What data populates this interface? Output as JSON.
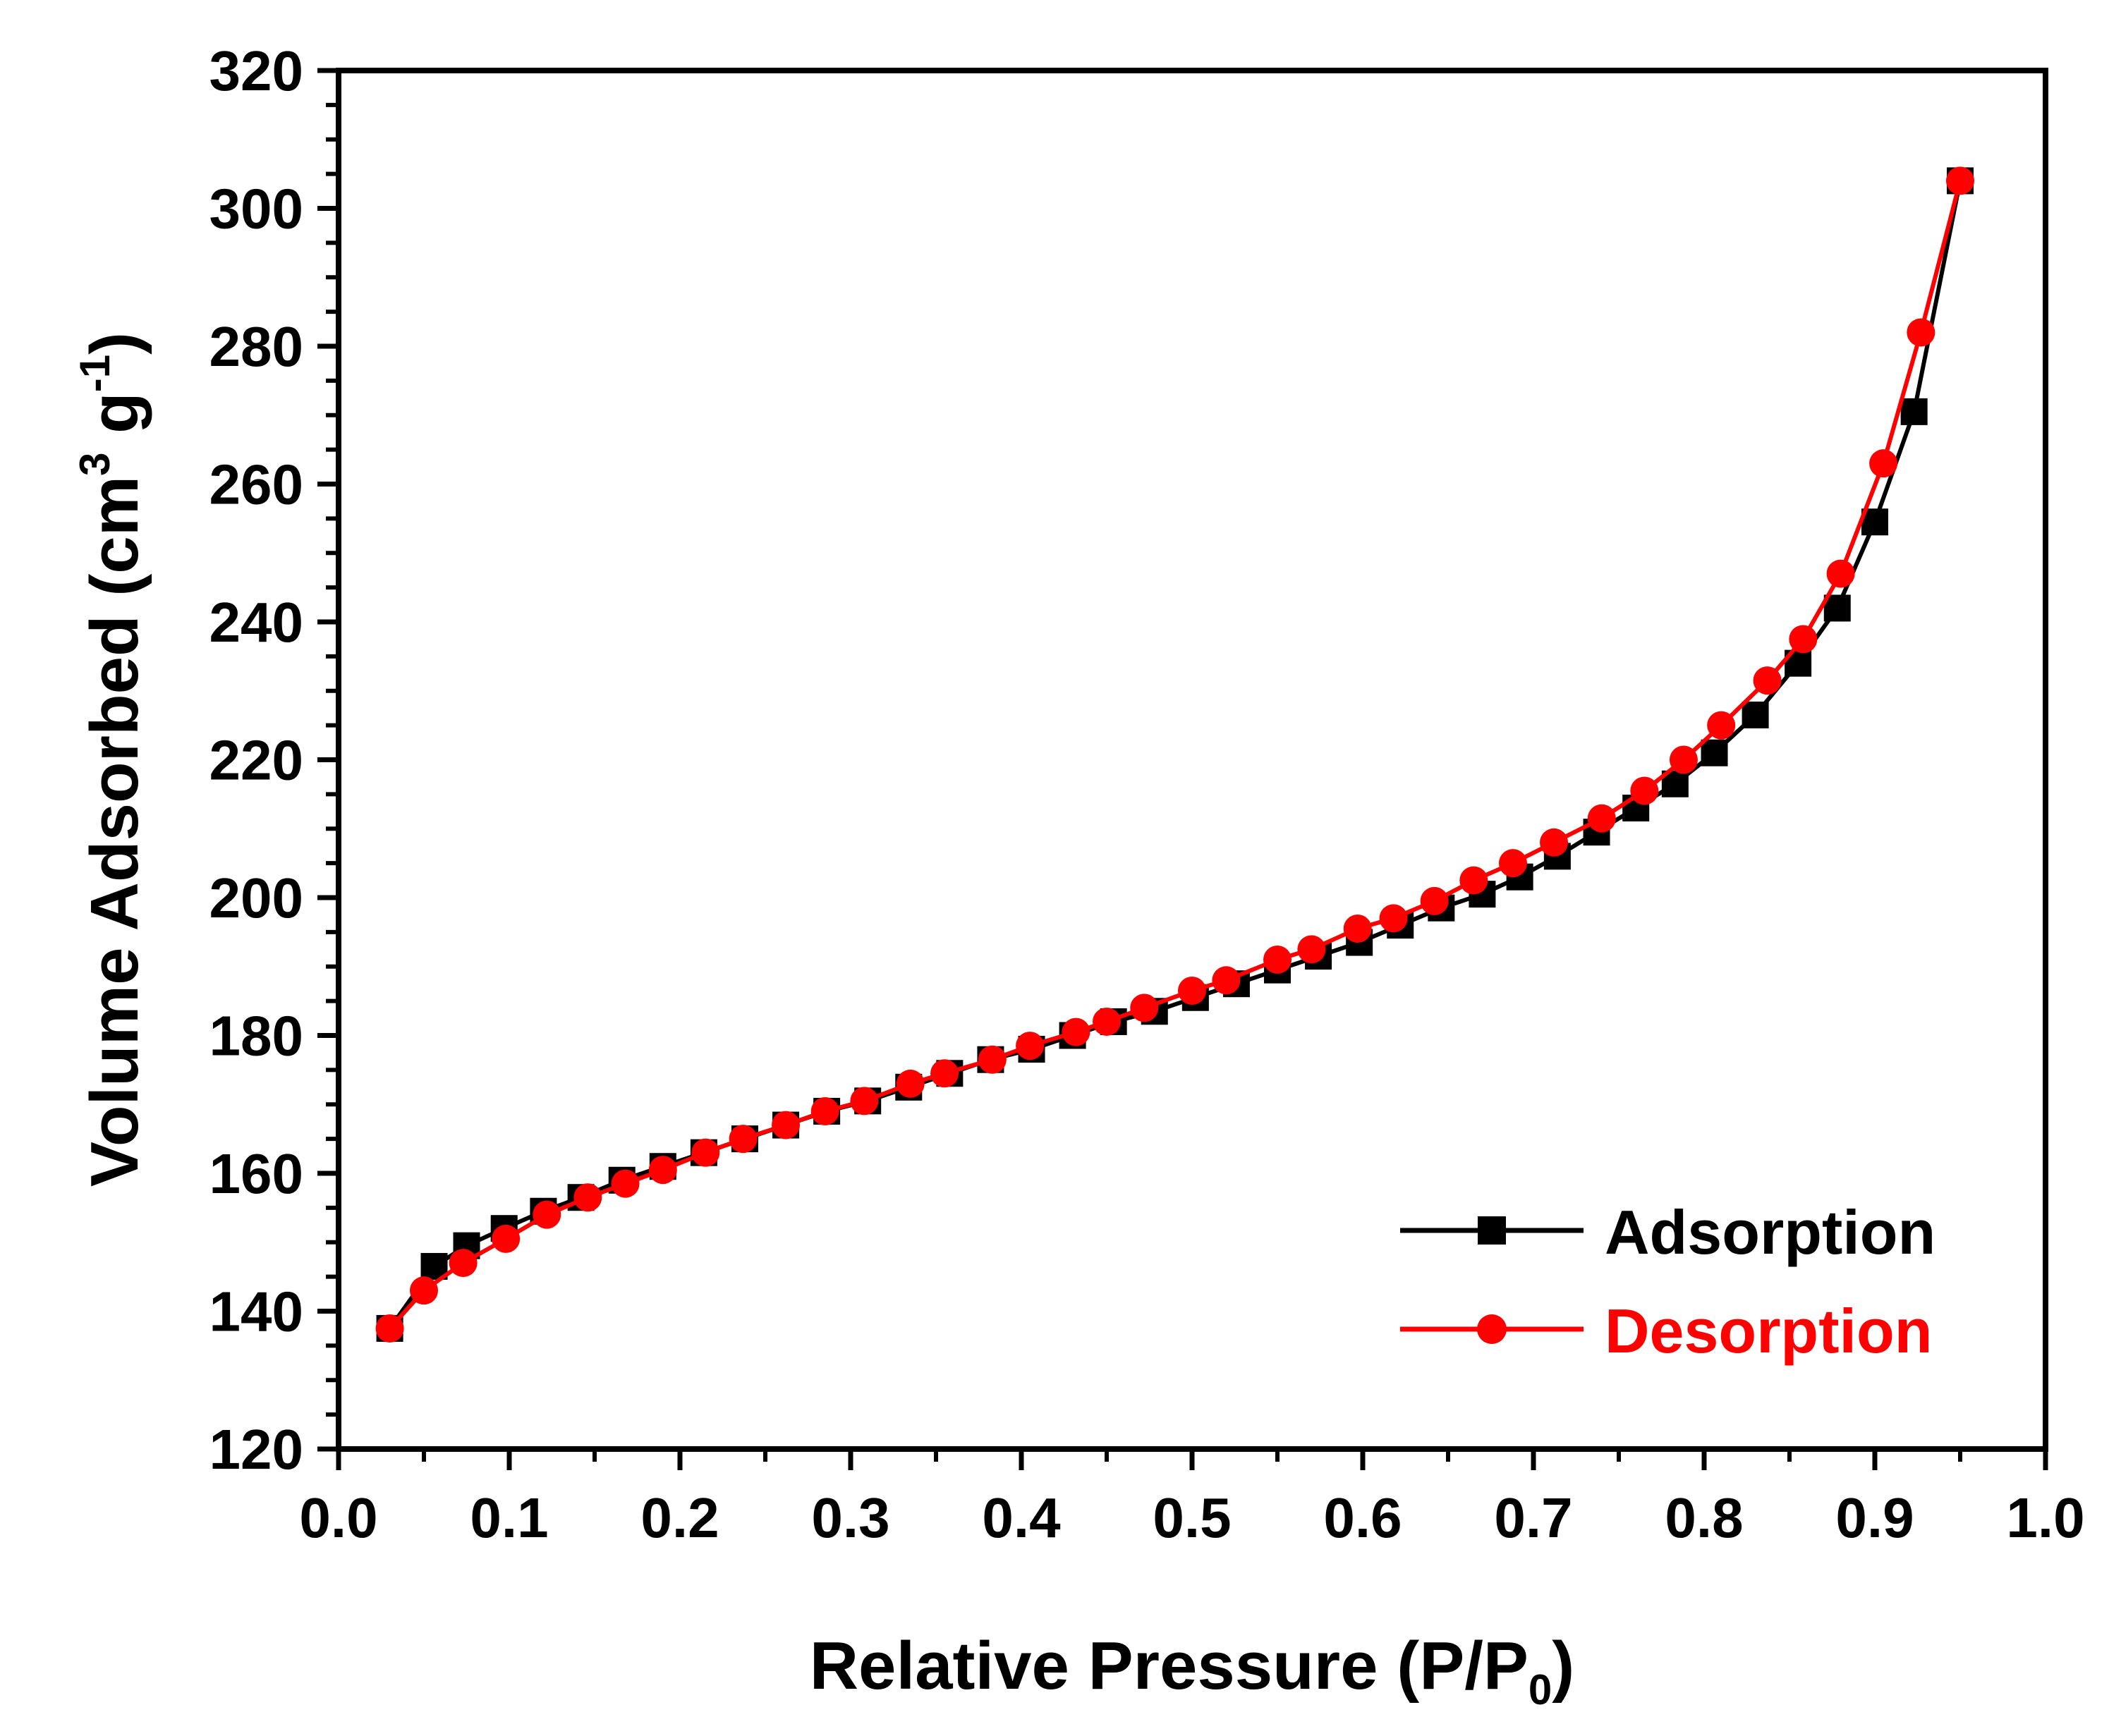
{
  "chart_data": {
    "type": "line",
    "title": "",
    "xlabel": "Relative Pressure (P/P",
    "xlabel_sub": "0",
    "xlabel_close": ")",
    "ylabel": "Volume Adsorbed (cm",
    "ylabel_sup1": "3",
    "ylabel_mid": " g",
    "ylabel_sup2": "-1",
    "ylabel_close": ")",
    "xlim": [
      0.0,
      1.0
    ],
    "ylim": [
      120,
      320
    ],
    "x_ticks": [
      "0.0",
      "0.1",
      "0.2",
      "0.3",
      "0.4",
      "0.5",
      "0.6",
      "0.7",
      "0.8",
      "0.9",
      "1.0"
    ],
    "y_ticks": [
      "120",
      "140",
      "160",
      "180",
      "200",
      "220",
      "240",
      "260",
      "280",
      "300",
      "320"
    ],
    "legend_position": "bottom-right",
    "series": [
      {
        "name": "Adsorption",
        "color": "#000000",
        "marker": "square",
        "points": [
          [
            0.03,
            137.5
          ],
          [
            0.056,
            146.5
          ],
          [
            0.075,
            149.5
          ],
          [
            0.097,
            152.0
          ],
          [
            0.12,
            154.5
          ],
          [
            0.142,
            156.5
          ],
          [
            0.166,
            159.0
          ],
          [
            0.19,
            161.0
          ],
          [
            0.214,
            163.0
          ],
          [
            0.238,
            165.0
          ],
          [
            0.262,
            167.0
          ],
          [
            0.286,
            169.0
          ],
          [
            0.31,
            170.5
          ],
          [
            0.334,
            172.5
          ],
          [
            0.358,
            174.5
          ],
          [
            0.382,
            176.5
          ],
          [
            0.406,
            178.0
          ],
          [
            0.43,
            180.0
          ],
          [
            0.454,
            182.0
          ],
          [
            0.478,
            183.5
          ],
          [
            0.502,
            185.5
          ],
          [
            0.526,
            187.5
          ],
          [
            0.55,
            189.5
          ],
          [
            0.574,
            191.5
          ],
          [
            0.598,
            193.5
          ],
          [
            0.622,
            196.0
          ],
          [
            0.646,
            198.5
          ],
          [
            0.67,
            200.5
          ],
          [
            0.692,
            203.0
          ],
          [
            0.714,
            206.0
          ],
          [
            0.737,
            209.5
          ],
          [
            0.76,
            213.0
          ],
          [
            0.783,
            216.5
          ],
          [
            0.806,
            221.0
          ],
          [
            0.83,
            226.5
          ],
          [
            0.855,
            234.0
          ],
          [
            0.878,
            242.0
          ],
          [
            0.9,
            254.5
          ],
          [
            0.923,
            270.5
          ],
          [
            0.95,
            304.0
          ]
        ]
      },
      {
        "name": "Desorption",
        "color": "#ff0000",
        "marker": "circle",
        "points": [
          [
            0.95,
            304.0
          ],
          [
            0.927,
            282.0
          ],
          [
            0.905,
            263.0
          ],
          [
            0.88,
            247.0
          ],
          [
            0.858,
            237.5
          ],
          [
            0.837,
            231.5
          ],
          [
            0.81,
            225.0
          ],
          [
            0.788,
            220.0
          ],
          [
            0.765,
            215.5
          ],
          [
            0.74,
            211.5
          ],
          [
            0.712,
            208.0
          ],
          [
            0.688,
            205.0
          ],
          [
            0.665,
            202.5
          ],
          [
            0.642,
            199.5
          ],
          [
            0.618,
            197.0
          ],
          [
            0.597,
            195.5
          ],
          [
            0.57,
            192.5
          ],
          [
            0.55,
            191.0
          ],
          [
            0.52,
            188.0
          ],
          [
            0.5,
            186.5
          ],
          [
            0.472,
            184.0
          ],
          [
            0.45,
            182.0
          ],
          [
            0.432,
            180.5
          ],
          [
            0.405,
            178.5
          ],
          [
            0.383,
            176.5
          ],
          [
            0.355,
            174.5
          ],
          [
            0.335,
            173.0
          ],
          [
            0.308,
            170.5
          ],
          [
            0.285,
            169.0
          ],
          [
            0.262,
            167.0
          ],
          [
            0.237,
            165.0
          ],
          [
            0.215,
            163.0
          ],
          [
            0.19,
            160.5
          ],
          [
            0.168,
            158.5
          ],
          [
            0.146,
            156.5
          ],
          [
            0.122,
            154.0
          ],
          [
            0.098,
            150.5
          ],
          [
            0.073,
            147.0
          ],
          [
            0.05,
            143.0
          ],
          [
            0.03,
            137.5
          ]
        ]
      }
    ]
  }
}
